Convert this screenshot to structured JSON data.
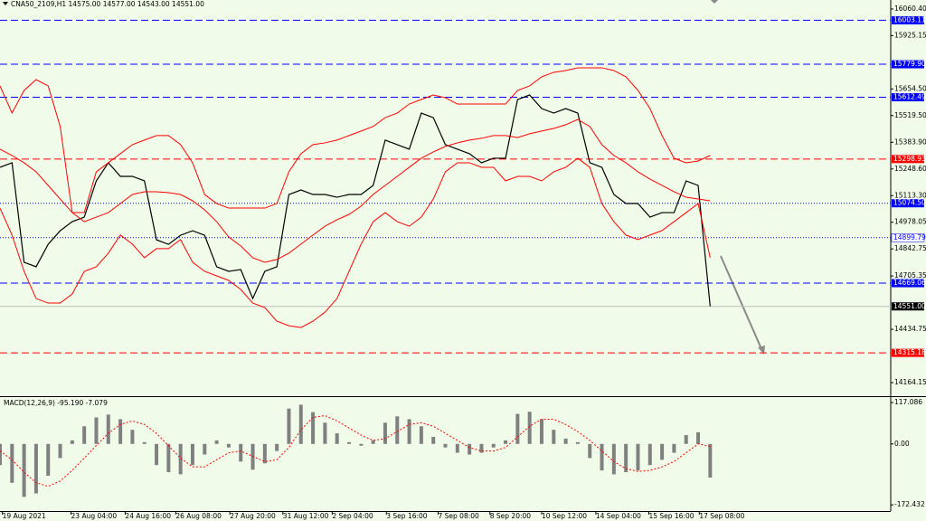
{
  "chart_data": [
    {
      "type": "line",
      "title": "CNA50_2109,H1  14575.00 14577.00 14543.00 14551.00",
      "xlim": [
        0,
        74
      ],
      "ylim": [
        14100,
        16106
      ],
      "xticks": [
        {
          "value": 0.2,
          "label": "19 Aug 2021"
        },
        {
          "value": 5.9,
          "label": "23 Aug 04:00"
        },
        {
          "value": 10.4,
          "label": "24 Aug 16:00"
        },
        {
          "value": 14.6,
          "label": "26 Aug 08:00"
        },
        {
          "value": 19.1,
          "label": "27 Aug 20:00"
        },
        {
          "value": 23.5,
          "label": "31 Aug 12:00"
        },
        {
          "value": 27.6,
          "label": "2 Sep 04:00"
        },
        {
          "value": 32.1,
          "label": "3 Sep 16:00"
        },
        {
          "value": 36.4,
          "label": "7 Sep 08:00"
        },
        {
          "value": 40.7,
          "label": "8 Sep 20:00"
        },
        {
          "value": 45,
          "label": "10 Sep 12:00"
        },
        {
          "value": 49.5,
          "label": "14 Sep 04:00"
        },
        {
          "value": 53.9,
          "label": "15 Sep 16:00"
        },
        {
          "value": 58.1,
          "label": "17 Sep 08:00"
        }
      ],
      "yticks": [
        {
          "value": 16060.4,
          "label": "16060.40"
        },
        15925.15,
        {
          "value": 15654.5,
          "label": "15654.50"
        },
        {
          "value": 15519.5,
          "label": "15519.50"
        },
        {
          "value": 15383.9,
          "label": "15383.90"
        },
        {
          "value": 15248.6,
          "label": "15248.60"
        },
        {
          "value": 15113.3,
          "label": "15113.30"
        },
        14978.05,
        14842.75,
        14705.35,
        14434.75,
        14164.15
      ],
      "series": [
        {
          "color": "#000000",
          "values": [
            15257,
            15280,
            14775,
            14752,
            14866,
            14935,
            14981,
            15004,
            15188,
            15280,
            15211,
            15211,
            15188,
            14889,
            14866,
            14912,
            14935,
            14912,
            14752,
            14729,
            14738,
            14591,
            14729,
            14752,
            15119,
            15142,
            15119,
            15119,
            15105,
            15119,
            15119,
            15165,
            15395,
            15372,
            15349,
            15532,
            15509,
            15372,
            15349,
            15326,
            15280,
            15303,
            15303,
            15601,
            15624,
            15555,
            15532,
            15555,
            15532,
            15280,
            15257,
            15119,
            15073,
            15073,
            15004,
            15027,
            15027,
            15188,
            15165,
            14551
          ]
        },
        {
          "color": "#ff0000",
          "values": [
            15670,
            15532,
            15647,
            15702,
            15670,
            15464,
            15027,
            15027,
            15234,
            15280,
            15326,
            15372,
            15395,
            15418,
            15418,
            15372,
            15280,
            15119,
            15073,
            15050,
            15050,
            15050,
            15050,
            15073,
            15234,
            15326,
            15372,
            15381,
            15395,
            15418,
            15441,
            15464,
            15509,
            15532,
            15578,
            15601,
            15624,
            15610,
            15578,
            15578,
            15578,
            15578,
            15578,
            15647,
            15670,
            15716,
            15739,
            15748,
            15762,
            15762,
            15762,
            15748,
            15716,
            15647,
            15555,
            15418,
            15303,
            15280,
            15289,
            15317
          ]
        },
        {
          "color": "#ff0000",
          "values": [
            15349,
            15317,
            15280,
            15234,
            15165,
            15096,
            15027,
            14981,
            15004,
            15027,
            15073,
            15119,
            15133,
            15133,
            15128,
            15119,
            15087,
            15041,
            14981,
            14903,
            14858,
            14798,
            14775,
            14789,
            14821,
            14867,
            14913,
            14958,
            14991,
            15018,
            15060,
            15119,
            15165,
            15211,
            15257,
            15303,
            15335,
            15363,
            15381,
            15395,
            15404,
            15418,
            15418,
            15408,
            15427,
            15441,
            15454,
            15473,
            15500,
            15464,
            15372,
            15317,
            15280,
            15234,
            15197,
            15165,
            15133,
            15105,
            15096,
            15087
          ]
        },
        {
          "color": "#ff0000",
          "values": [
            15050,
            14913,
            14729,
            14591,
            14568,
            14568,
            14614,
            14729,
            14752,
            14821,
            14913,
            14867,
            14798,
            14844,
            14844,
            14890,
            14775,
            14729,
            14706,
            14683,
            14637,
            14568,
            14545,
            14476,
            14453,
            14444,
            14476,
            14522,
            14591,
            14729,
            14867,
            14981,
            15027,
            14981,
            14958,
            15004,
            15096,
            15234,
            15280,
            15280,
            15257,
            15257,
            15188,
            15211,
            15211,
            15188,
            15234,
            15257,
            15303,
            15257,
            15073,
            14981,
            14913,
            14890,
            14913,
            14936,
            14981,
            15027,
            15073,
            14798
          ]
        }
      ],
      "levels": [
        {
          "value": 16003.11,
          "color": "#0000ff",
          "style": "dashed",
          "fill": "#0000ff"
        },
        {
          "value": 15779.9,
          "label": "15779.90",
          "color": "#0000ff",
          "style": "dashed",
          "fill": "#0000ff"
        },
        {
          "value": 15612.49,
          "color": "#0000ff",
          "style": "dashed",
          "fill": "#0000ff"
        },
        {
          "value": 15298.93,
          "color": "#ff0000",
          "style": "dashed",
          "fill": "#ff0000"
        },
        {
          "value": 15074.5,
          "label": "15074.50",
          "color": "#0000ff",
          "style": "dotted",
          "fill": "#0000ff"
        },
        {
          "value": 14899.79,
          "color": "#0000ff",
          "style": "dotted",
          "fill": "#ffffff"
        },
        {
          "value": 14669.06,
          "color": "#0000ff",
          "style": "dashed",
          "fill": "#0000ff"
        },
        {
          "value": 14551,
          "label": "14551.00",
          "color": "#c0c0c0",
          "style": "solid",
          "fill": "#000000"
        },
        {
          "value": 14315.18,
          "color": "#ff0000",
          "style": "dashed",
          "fill": "#ff0000"
        }
      ]
    },
    {
      "type": "bar",
      "title": "MACD(12,26,9) -95.190 -7.079",
      "xlim": [
        0,
        74
      ],
      "ylim": [
        -190,
        130
      ],
      "yticks": [
        117.086,
        {
          "value": 0,
          "label": "0.00"
        },
        -172.432
      ],
      "series": [
        {
          "color": "#808080",
          "values": [
            -60,
            -110,
            -150,
            -140,
            -90,
            -40,
            10,
            50,
            75,
            83,
            70,
            40,
            5,
            -60,
            -80,
            -86,
            -60,
            -30,
            10,
            -10,
            -50,
            -73,
            -55,
            -20,
            100,
            111,
            90,
            60,
            30,
            5,
            -5,
            10,
            60,
            78,
            70,
            50,
            20,
            -10,
            -25,
            -30,
            -25,
            -10,
            10,
            85,
            91,
            70,
            40,
            15,
            5,
            -40,
            -75,
            -86,
            -80,
            -75,
            -60,
            -45,
            -25,
            25,
            33,
            -95.19
          ]
        },
        {
          "color": "#ff0000",
          "values": [
            -20,
            -45,
            -80,
            -110,
            -120,
            -105,
            -75,
            -40,
            -5,
            30,
            55,
            65,
            55,
            30,
            -5,
            -40,
            -65,
            -65,
            -45,
            -25,
            -20,
            -35,
            -50,
            -45,
            -10,
            40,
            75,
            80,
            65,
            45,
            25,
            10,
            15,
            35,
            55,
            60,
            50,
            30,
            10,
            -10,
            -20,
            -20,
            -10,
            20,
            50,
            70,
            70,
            55,
            35,
            10,
            -20,
            -50,
            -70,
            -78,
            -75,
            -65,
            -50,
            -25,
            0,
            -7.079
          ]
        }
      ]
    }
  ]
}
